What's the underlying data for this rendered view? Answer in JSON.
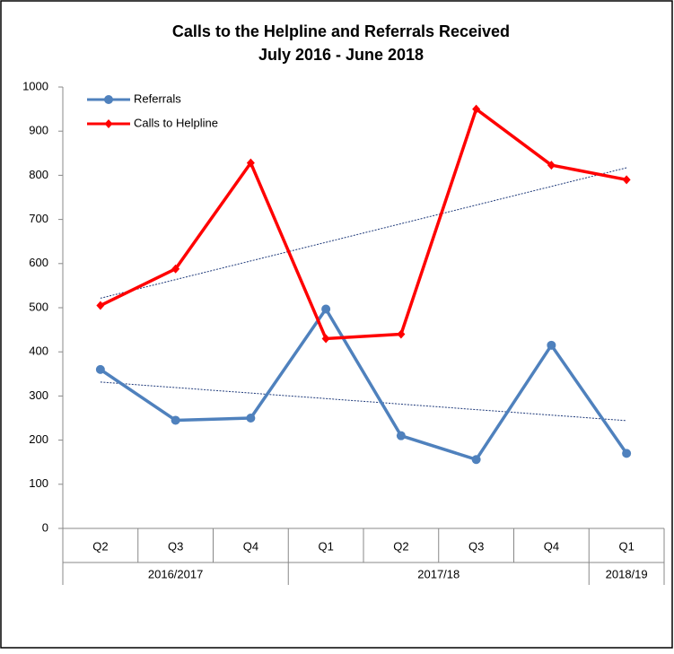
{
  "chart_data": {
    "type": "line",
    "title": "Calls to the Helpline and Referrals Received",
    "subtitle": "July 2016 - June 2018",
    "categories": [
      "Q2",
      "Q3",
      "Q4",
      "Q1",
      "Q2",
      "Q3",
      "Q4",
      "Q1"
    ],
    "category_groups": [
      {
        "name": "2016/2017",
        "span": 3
      },
      {
        "name": "2017/18",
        "span": 4
      },
      {
        "name": "2018/19",
        "span": 1
      }
    ],
    "series": [
      {
        "name": "Referrals",
        "color": "#4f81bd",
        "marker": "circle",
        "values": [
          360,
          245,
          250,
          497,
          210,
          156,
          415,
          170
        ]
      },
      {
        "name": "Calls to Helpline",
        "color": "#ff0000",
        "marker": "diamond",
        "values": [
          505,
          588,
          828,
          430,
          440,
          950,
          823,
          790
        ]
      }
    ],
    "trendline": true,
    "trendline_color": "#1f3a7a",
    "ylim": [
      0,
      1000
    ],
    "yticks": [
      0,
      100,
      200,
      300,
      400,
      500,
      600,
      700,
      800,
      900,
      1000
    ],
    "grid": false,
    "legend": "top-left"
  }
}
